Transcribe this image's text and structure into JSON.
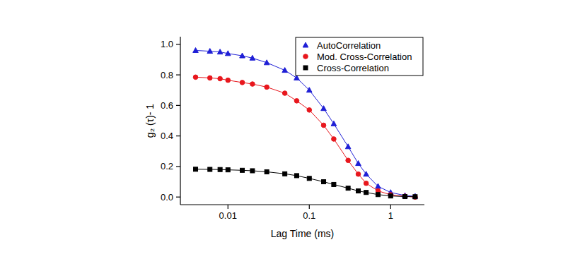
{
  "chart_data": {
    "type": "scatter",
    "x_label": "Lag Time (ms)",
    "y_label": "g₂ (τ)- 1",
    "log": "x",
    "legend": "top-right",
    "grid": false,
    "xlim": [
      0.0026,
      2.6
    ],
    "ylim": [
      -0.05,
      1.05
    ],
    "xticks": [
      0.01,
      0.1,
      1
    ],
    "yticks": [
      {
        "value": 0,
        "label": "0.0"
      },
      0.2,
      0.4,
      0.6,
      0.8,
      {
        "value": 1,
        "label": "1.0"
      }
    ],
    "x": [
      0.004,
      0.006,
      0.008,
      0.01,
      0.015,
      0.02,
      0.03,
      0.05,
      0.07,
      0.1,
      0.15,
      0.2,
      0.3,
      0.4,
      0.5,
      0.7,
      1.0,
      1.5,
      2.0
    ],
    "series": [
      {
        "name": "AutoCorrelation",
        "color": "#1f1fd6",
        "marker": "triangle",
        "line_style": "solid",
        "values": [
          0.96,
          0.955,
          0.95,
          0.94,
          0.925,
          0.91,
          0.88,
          0.83,
          0.78,
          0.7,
          0.58,
          0.48,
          0.33,
          0.22,
          0.15,
          0.07,
          0.03,
          0.01,
          0.005
        ]
      },
      {
        "name": "Mod. Cross-Correlation",
        "color": "#e8171d",
        "marker": "circle",
        "line_style": "solid",
        "values": [
          0.785,
          0.78,
          0.775,
          0.765,
          0.75,
          0.74,
          0.72,
          0.68,
          0.63,
          0.57,
          0.47,
          0.38,
          0.24,
          0.15,
          0.09,
          0.04,
          0.015,
          0.005,
          0.0
        ]
      },
      {
        "name": "Cross-Correlation",
        "color": "#000000",
        "marker": "square",
        "line_style": "solid",
        "values": [
          0.182,
          0.181,
          0.18,
          0.178,
          0.175,
          0.172,
          0.165,
          0.152,
          0.14,
          0.122,
          0.1,
          0.082,
          0.058,
          0.04,
          0.03,
          0.016,
          0.007,
          0.003,
          0.002
        ]
      }
    ]
  }
}
